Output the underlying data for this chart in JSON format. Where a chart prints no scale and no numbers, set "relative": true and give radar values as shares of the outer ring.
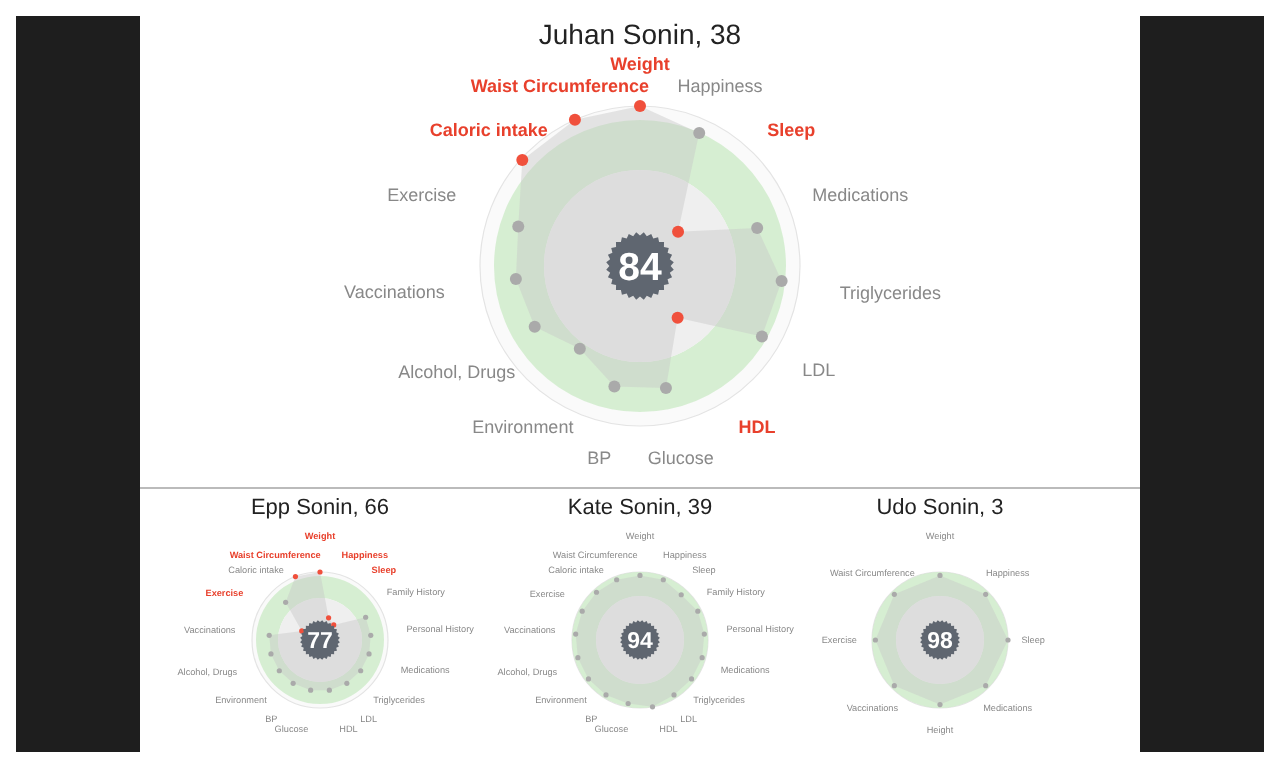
{
  "chart_data": [
    {
      "type": "radar",
      "title": "Juhan Sonin, 38",
      "relative": true,
      "categories": [
        "Weight",
        "Happiness",
        "Sleep",
        "Medications",
        "Triglycerides",
        "LDL",
        "HDL",
        "Glucose",
        "BP",
        "Environment",
        "Alcohol, Drugs",
        "Vaccinations",
        "Exercise",
        "Caloric intake",
        "Waist Circumference"
      ],
      "series": [
        {
          "color": "#c8c8c8",
          "values": [
            1,
            0.91,
            0.32,
            0.77,
            0.89,
            0.88,
            0.4,
            0.78,
            0.77,
            0.64,
            0.76,
            0.78,
            0.8,
            0.99,
            1
          ],
          "colors": [
            "#f0503c",
            "#aaaaaa",
            "#f0503c",
            "#aaaaaa",
            "#aaaaaa",
            "#aaaaaa",
            "#f0503c",
            "#aaaaaa",
            "#aaaaaa",
            "#aaaaaa",
            "#aaaaaa",
            "#aaaaaa",
            "#aaaaaa",
            "#f0503c",
            "#f0503c"
          ]
        }
      ],
      "annotations": [
        "84"
      ]
    },
    {
      "type": "radar",
      "title": "Epp Sonin, 66",
      "relative": true,
      "categories": [
        "Weight",
        "Happiness",
        "Sleep",
        "Family History",
        "Personal History",
        "Medications",
        "Triglycerides",
        "LDL",
        "HDL",
        "Glucose",
        "BP",
        "Environment",
        "Alcohol, Drugs",
        "Vaccinations",
        "Exercise",
        "Caloric intake",
        "Waist Circumference"
      ],
      "series": [
        {
          "color": "#c8c8c8",
          "values": [
            1,
            0.35,
            0.3,
            0.75,
            0.75,
            0.75,
            0.75,
            0.75,
            0.75,
            0.75,
            0.75,
            0.75,
            0.75,
            0.75,
            0.3,
            0.75,
            1
          ],
          "colors": [
            "#f0503c",
            "#f0503c",
            "#f0503c",
            "#aaaaaa",
            "#aaaaaa",
            "#aaaaaa",
            "#aaaaaa",
            "#aaaaaa",
            "#aaaaaa",
            "#aaaaaa",
            "#aaaaaa",
            "#aaaaaa",
            "#aaaaaa",
            "#aaaaaa",
            "#f0503c",
            "#aaaaaa",
            "#f0503c"
          ]
        }
      ],
      "annotations": [
        "77"
      ]
    },
    {
      "type": "radar",
      "title": "Kate Sonin, 39",
      "relative": true,
      "categories": [
        "Weight",
        "Happiness",
        "Sleep",
        "Family History",
        "Personal History",
        "Medications",
        "Triglycerides",
        "LDL",
        "HDL",
        "Glucose",
        "BP",
        "Environment",
        "Alcohol, Drugs",
        "Vaccinations",
        "Exercise",
        "Caloric intake",
        "Waist Circumference"
      ],
      "series": [
        {
          "color": "#c8c8c8",
          "values": [
            0.95,
            0.95,
            0.9,
            0.95,
            0.95,
            0.95,
            0.95,
            0.95,
            1,
            0.95,
            0.95,
            0.95,
            0.95,
            0.95,
            0.95,
            0.95,
            0.95
          ],
          "colors": [
            "#aaaaaa",
            "#aaaaaa",
            "#aaaaaa",
            "#aaaaaa",
            "#aaaaaa",
            "#aaaaaa",
            "#aaaaaa",
            "#aaaaaa",
            "#aaaaaa",
            "#aaaaaa",
            "#aaaaaa",
            "#aaaaaa",
            "#aaaaaa",
            "#aaaaaa",
            "#aaaaaa",
            "#aaaaaa",
            "#aaaaaa"
          ]
        }
      ],
      "annotations": [
        "94"
      ]
    },
    {
      "type": "radar",
      "title": "Udo Sonin, 3",
      "relative": true,
      "categories": [
        "Weight",
        "Happiness",
        "Sleep",
        "Medications",
        "Height",
        "Vaccinations",
        "Exercise",
        "Waist Circumference"
      ],
      "series": [
        {
          "color": "#c8c8c8",
          "values": [
            0.95,
            0.95,
            1,
            0.95,
            0.95,
            0.95,
            0.95,
            0.95
          ],
          "colors": [
            "#aaaaaa",
            "#aaaaaa",
            "#aaaaaa",
            "#aaaaaa",
            "#aaaaaa",
            "#aaaaaa",
            "#aaaaaa",
            "#aaaaaa"
          ]
        }
      ],
      "annotations": [
        "98"
      ]
    }
  ]
}
